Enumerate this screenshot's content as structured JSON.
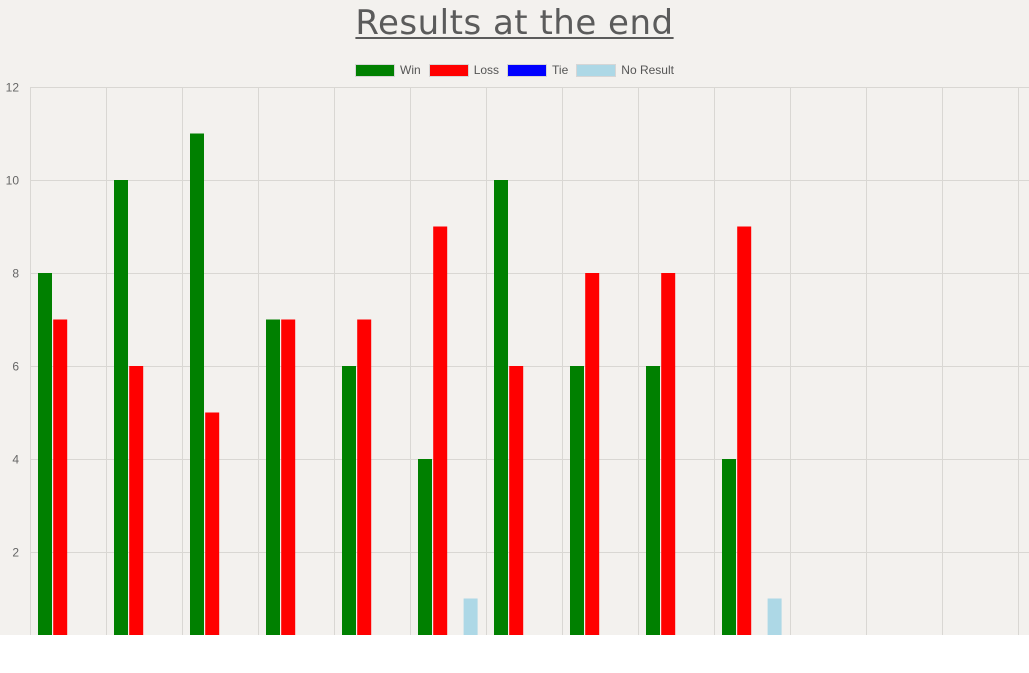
{
  "chart_data": {
    "type": "bar",
    "title": "Results at the end",
    "legend_position": "top",
    "categories": [
      "",
      "",
      "",
      "",
      "",
      "",
      "",
      "",
      "",
      "",
      "",
      "",
      "",
      ""
    ],
    "series": [
      {
        "name": "Win",
        "color": "#008000",
        "values": [
          8,
          10,
          11,
          7,
          6,
          4,
          10,
          6,
          6,
          4,
          0,
          0,
          0,
          0
        ]
      },
      {
        "name": "Loss",
        "color": "#ff0000",
        "values": [
          7,
          6,
          5,
          7,
          7,
          9,
          6,
          8,
          8,
          9,
          0,
          0,
          0,
          0
        ]
      },
      {
        "name": "Tie",
        "color": "#0000ff",
        "values": [
          0,
          0,
          0,
          0,
          0,
          0,
          0,
          0,
          0,
          0,
          0,
          0,
          0,
          0
        ]
      },
      {
        "name": "No Result",
        "color": "#add8e6",
        "values": [
          0,
          0,
          0,
          0,
          0,
          1,
          0,
          0,
          0,
          1,
          0,
          0,
          0,
          0
        ]
      }
    ],
    "ylim": [
      0,
      12
    ],
    "yticks": [
      2,
      4,
      6,
      8,
      10,
      12
    ],
    "grid": true,
    "xlabel": "",
    "ylabel": ""
  }
}
